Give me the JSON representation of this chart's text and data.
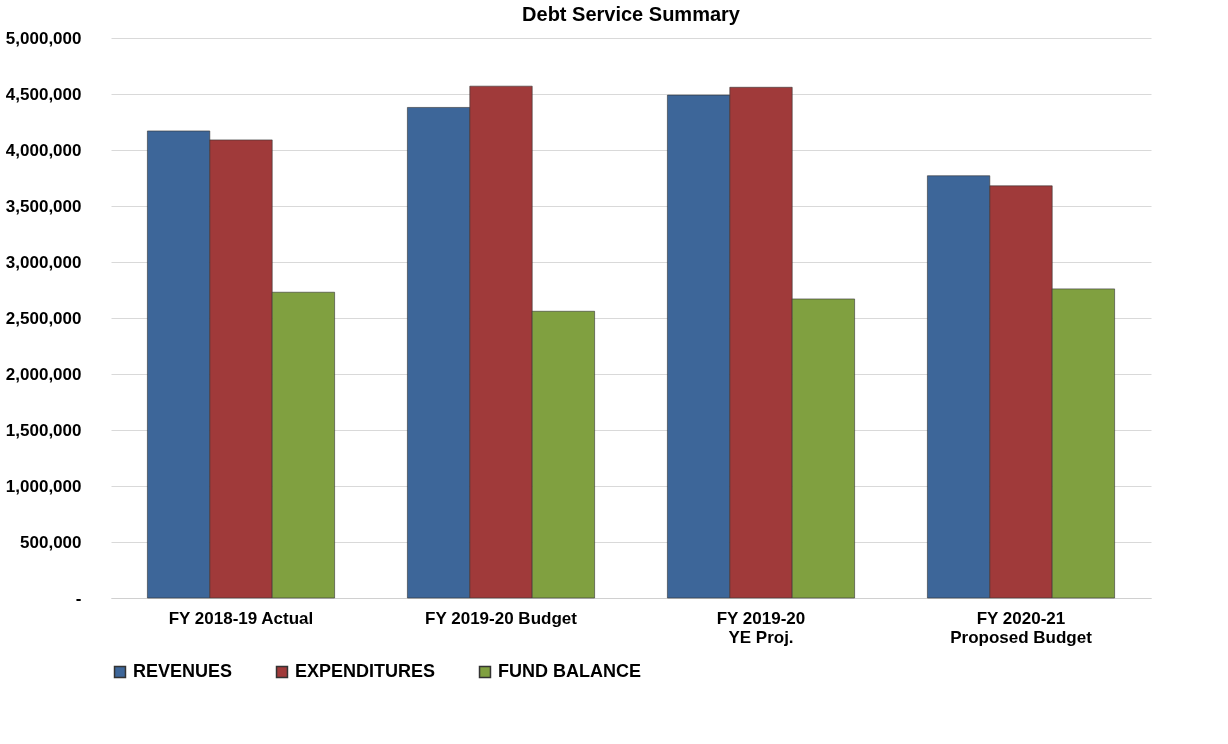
{
  "chart_data": {
    "type": "bar",
    "title": "Debt Service Summary",
    "categories": [
      "FY 2018-19 Actual",
      "FY 2019-20 Budget",
      "FY 2019-20\nYE Proj.",
      "FY 2020-21\nProposed Budget"
    ],
    "series": [
      {
        "name": "REVENUES",
        "color": "#3d6699",
        "values": [
          4170000,
          4380000,
          4490000,
          3770000
        ]
      },
      {
        "name": "EXPENDITURES",
        "color": "#a03a3a",
        "values": [
          4090000,
          4570000,
          4560000,
          3680000
        ]
      },
      {
        "name": "FUND BALANCE",
        "color": "#80a040",
        "values": [
          2730000,
          2560000,
          2670000,
          2760000
        ]
      }
    ],
    "ylim": [
      0,
      5000000
    ],
    "yticks": [
      {
        "value": 0,
        "label": "-"
      },
      {
        "value": 500000,
        "label": "500,000"
      },
      {
        "value": 1000000,
        "label": "1,000,000"
      },
      {
        "value": 1500000,
        "label": "1,500,000"
      },
      {
        "value": 2000000,
        "label": "2,000,000"
      },
      {
        "value": 2500000,
        "label": "2,500,000"
      },
      {
        "value": 3000000,
        "label": "3,000,000"
      },
      {
        "value": 3500000,
        "label": "3,500,000"
      },
      {
        "value": 4000000,
        "label": "4,000,000"
      },
      {
        "value": 4500000,
        "label": "4,500,000"
      },
      {
        "value": 5000000,
        "label": "5,000,000"
      }
    ],
    "grid": "y",
    "legend": "bottom"
  }
}
